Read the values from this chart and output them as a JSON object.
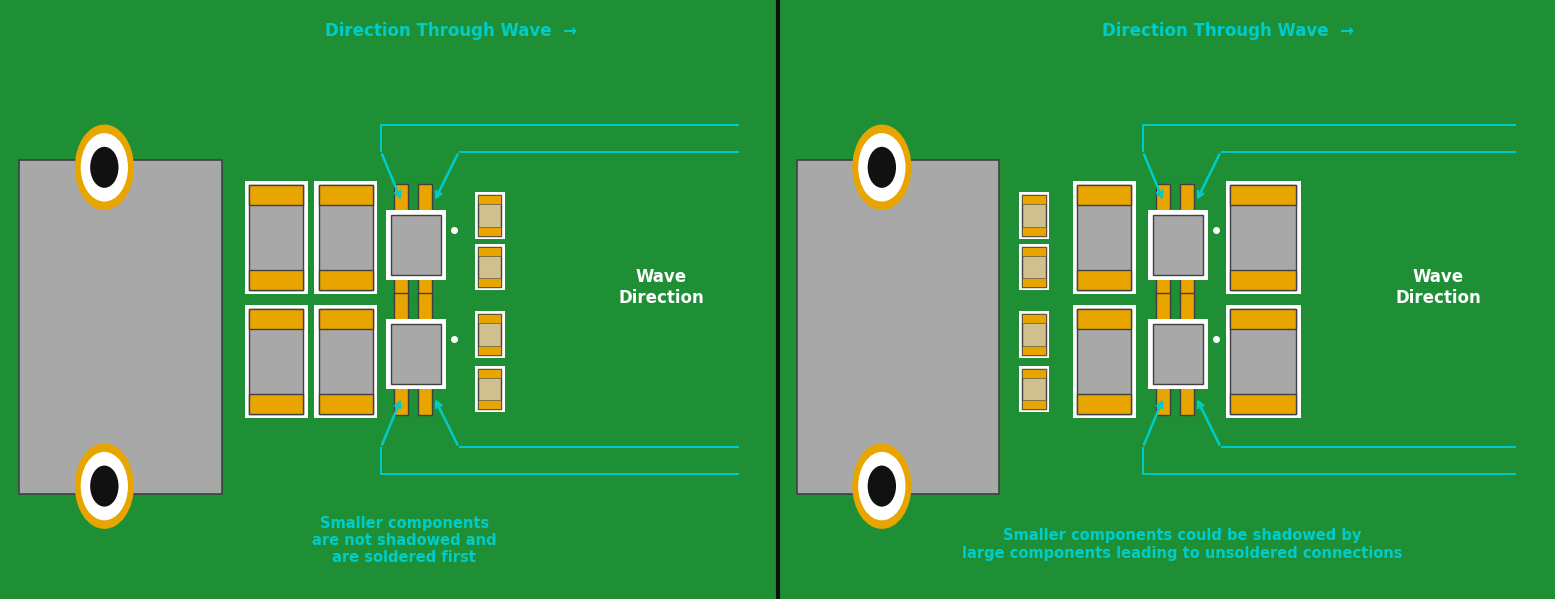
{
  "bg_color": "#1e8f35",
  "gray_comp": "#a8a8a8",
  "gold": "#e8a500",
  "white": "#ffffff",
  "cream": "#d0c090",
  "cyan": "#00cccc",
  "dark": "#111111",
  "border_dark": "#404040",
  "title": "Direction Through Wave  →",
  "wave_dir": "Wave\nDirection",
  "label_left": "Smaller components\nare not shadowed and\nare soldered first",
  "label_right": "Smaller components could be shadowed by\nlarge components leading to unsoldered connections",
  "font_size_title": 12,
  "font_size_label": 10.5,
  "font_size_wave": 12
}
